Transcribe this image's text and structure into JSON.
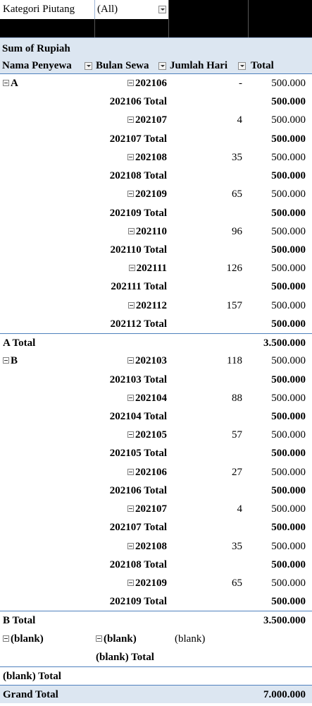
{
  "filter": {
    "label": "Kategori Piutang",
    "value": "(All)"
  },
  "pivot_title": "Sum of Rupiah",
  "headers": {
    "col1": "Nama Penyewa",
    "col2": "Bulan Sewa",
    "col3": "Jumlah Hari",
    "col4": "Total"
  },
  "rows": [
    {
      "type": "detail",
      "group": "A",
      "month": "202106",
      "days": "-",
      "amount": "500.000"
    },
    {
      "type": "subtotal",
      "label": "202106 Total",
      "amount": "500.000"
    },
    {
      "type": "detail",
      "month": "202107",
      "days": "4",
      "amount": "500.000"
    },
    {
      "type": "subtotal",
      "label": "202107 Total",
      "amount": "500.000"
    },
    {
      "type": "detail",
      "month": "202108",
      "days": "35",
      "amount": "500.000"
    },
    {
      "type": "subtotal",
      "label": "202108 Total",
      "amount": "500.000"
    },
    {
      "type": "detail",
      "month": "202109",
      "days": "65",
      "amount": "500.000"
    },
    {
      "type": "subtotal",
      "label": "202109 Total",
      "amount": "500.000"
    },
    {
      "type": "detail",
      "month": "202110",
      "days": "96",
      "amount": "500.000"
    },
    {
      "type": "subtotal",
      "label": "202110 Total",
      "amount": "500.000"
    },
    {
      "type": "detail",
      "month": "202111",
      "days": "126",
      "amount": "500.000"
    },
    {
      "type": "subtotal",
      "label": "202111 Total",
      "amount": "500.000"
    },
    {
      "type": "detail",
      "month": "202112",
      "days": "157",
      "amount": "500.000"
    },
    {
      "type": "subtotal",
      "label": "202112 Total",
      "amount": "500.000"
    },
    {
      "type": "group_total",
      "label": "A Total",
      "amount": "3.500.000"
    },
    {
      "type": "detail",
      "group": "B",
      "month": "202103",
      "days": "118",
      "amount": "500.000"
    },
    {
      "type": "subtotal",
      "label": "202103 Total",
      "amount": "500.000"
    },
    {
      "type": "detail",
      "month": "202104",
      "days": "88",
      "amount": "500.000"
    },
    {
      "type": "subtotal",
      "label": "202104 Total",
      "amount": "500.000"
    },
    {
      "type": "detail",
      "month": "202105",
      "days": "57",
      "amount": "500.000"
    },
    {
      "type": "subtotal",
      "label": "202105 Total",
      "amount": "500.000"
    },
    {
      "type": "detail",
      "month": "202106",
      "days": "27",
      "amount": "500.000"
    },
    {
      "type": "subtotal",
      "label": "202106 Total",
      "amount": "500.000"
    },
    {
      "type": "detail",
      "month": "202107",
      "days": "4",
      "amount": "500.000"
    },
    {
      "type": "subtotal",
      "label": "202107 Total",
      "amount": "500.000"
    },
    {
      "type": "detail",
      "month": "202108",
      "days": "35",
      "amount": "500.000"
    },
    {
      "type": "subtotal",
      "label": "202108 Total",
      "amount": "500.000"
    },
    {
      "type": "detail",
      "month": "202109",
      "days": "65",
      "amount": "500.000"
    },
    {
      "type": "subtotal",
      "label": "202109 Total",
      "amount": "500.000"
    },
    {
      "type": "group_total",
      "label": "B Total",
      "amount": "3.500.000"
    },
    {
      "type": "blank_detail",
      "group": "(blank)",
      "month": "(blank)",
      "days": "(blank)"
    },
    {
      "type": "blank_subtotal",
      "label": "(blank) Total"
    },
    {
      "type": "group_total",
      "label": "(blank) Total",
      "amount": ""
    },
    {
      "type": "grand_total",
      "label": "Grand Total",
      "amount": "7.000.000"
    }
  ]
}
